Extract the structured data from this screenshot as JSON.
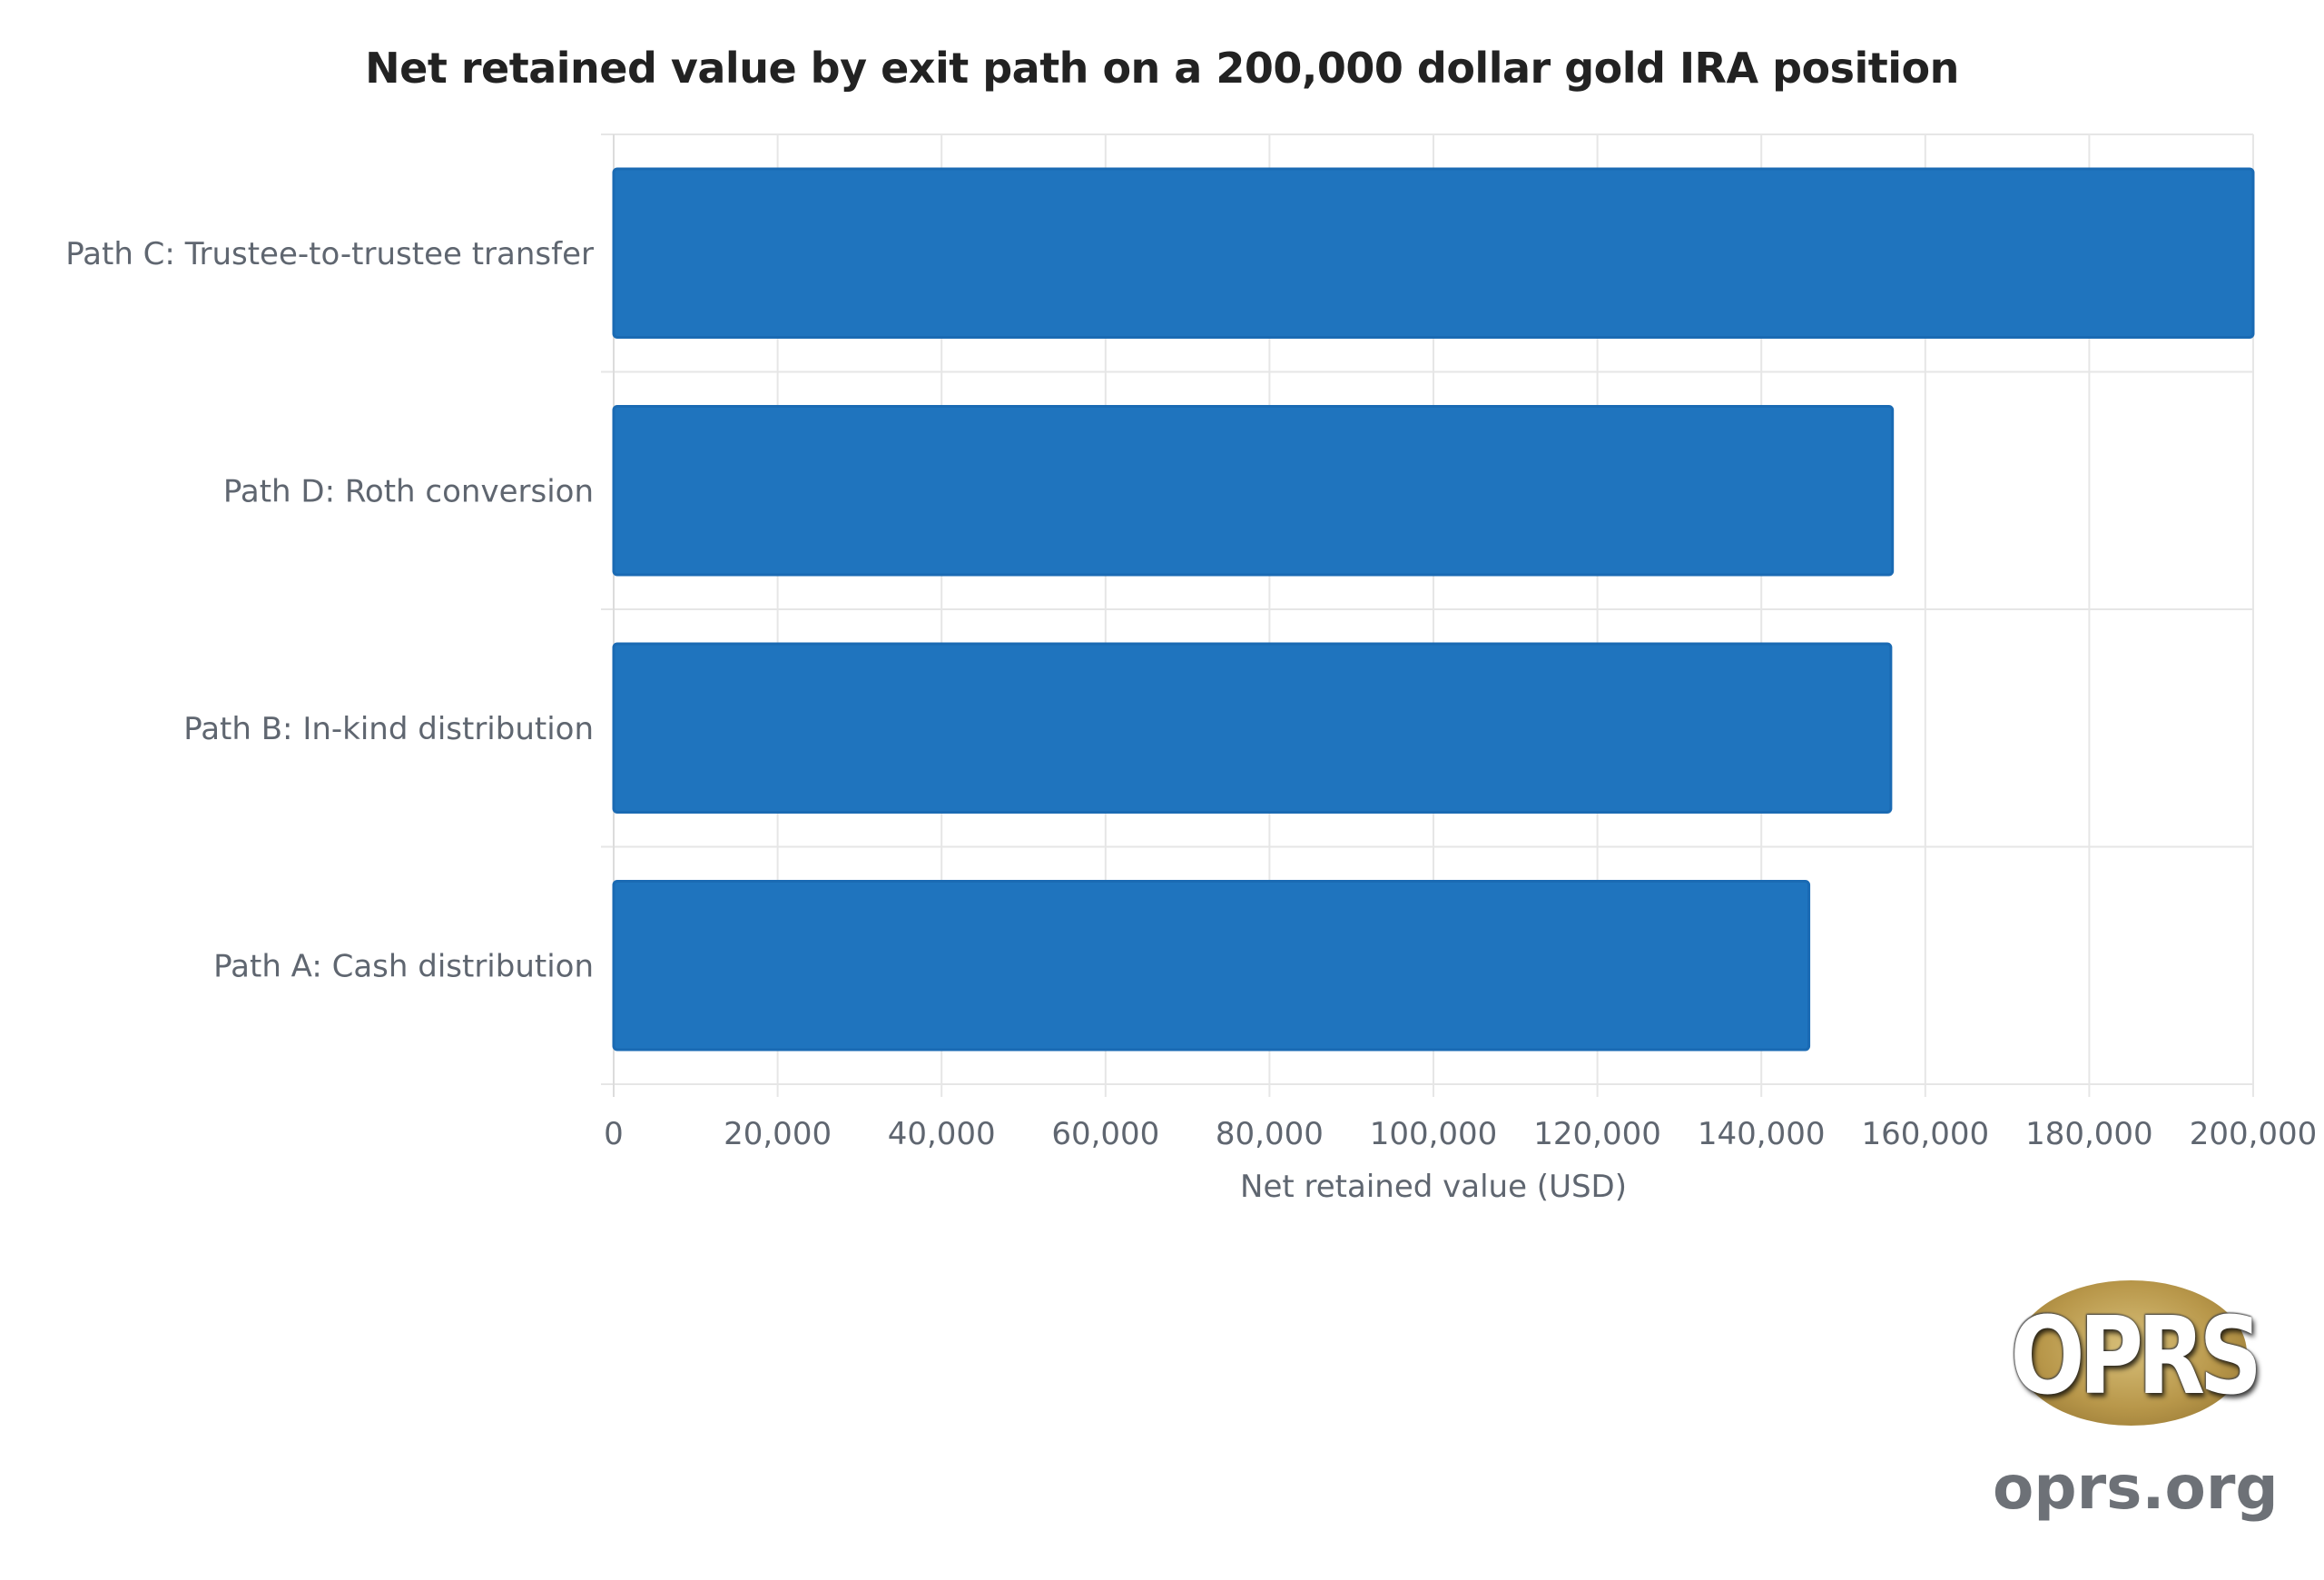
{
  "chart_data": {
    "type": "bar",
    "orientation": "horizontal",
    "title": "Net retained value by exit path on a 200,000 dollar gold IRA position",
    "xlabel": "Net retained value (USD)",
    "ylabel": "",
    "categories": [
      "Path C: Trustee-to-trustee transfer",
      "Path D: Roth conversion",
      "Path B: In-kind distribution",
      "Path A: Cash distribution"
    ],
    "values": [
      200000,
      156000,
      155800,
      145800
    ],
    "xlim": [
      0,
      200000
    ],
    "x_ticks": [
      "0",
      "20,000",
      "40,000",
      "60,000",
      "80,000",
      "100,000",
      "120,000",
      "140,000",
      "160,000",
      "180,000",
      "200,000"
    ],
    "x_tick_values": [
      0,
      20000,
      40000,
      60000,
      80000,
      100000,
      120000,
      140000,
      160000,
      180000,
      200000
    ],
    "grid": true,
    "legend": "none",
    "bar_color": "#1f74be",
    "bar_edge_color": "#1a6ab3"
  },
  "branding": {
    "logo_text": "OPRS",
    "url": "oprs.org"
  }
}
